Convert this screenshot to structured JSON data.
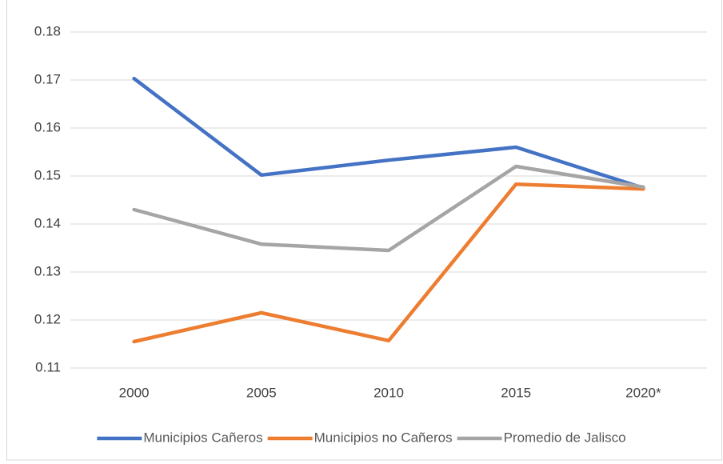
{
  "chart_data": {
    "type": "line",
    "categories": [
      "2000",
      "2005",
      "2010",
      "2015",
      "2020*"
    ],
    "series": [
      {
        "name": "Municipios Cañeros",
        "color": "#4472c4",
        "values": [
          0.1703,
          0.1502,
          0.1533,
          0.156,
          0.1475
        ]
      },
      {
        "name": "Municipios no Cañeros",
        "color": "#ed7d31",
        "values": [
          0.1155,
          0.1215,
          0.1157,
          0.1483,
          0.1473
        ]
      },
      {
        "name": "Promedio de Jalisco",
        "color": "#a5a5a5",
        "values": [
          0.143,
          0.1358,
          0.1345,
          0.152,
          0.1477
        ]
      }
    ],
    "ylim": [
      0.11,
      0.18
    ],
    "yticks": [
      0.11,
      0.12,
      0.13,
      0.14,
      0.15,
      0.16,
      0.17,
      0.18
    ],
    "grid": true,
    "legend": "bottom"
  }
}
